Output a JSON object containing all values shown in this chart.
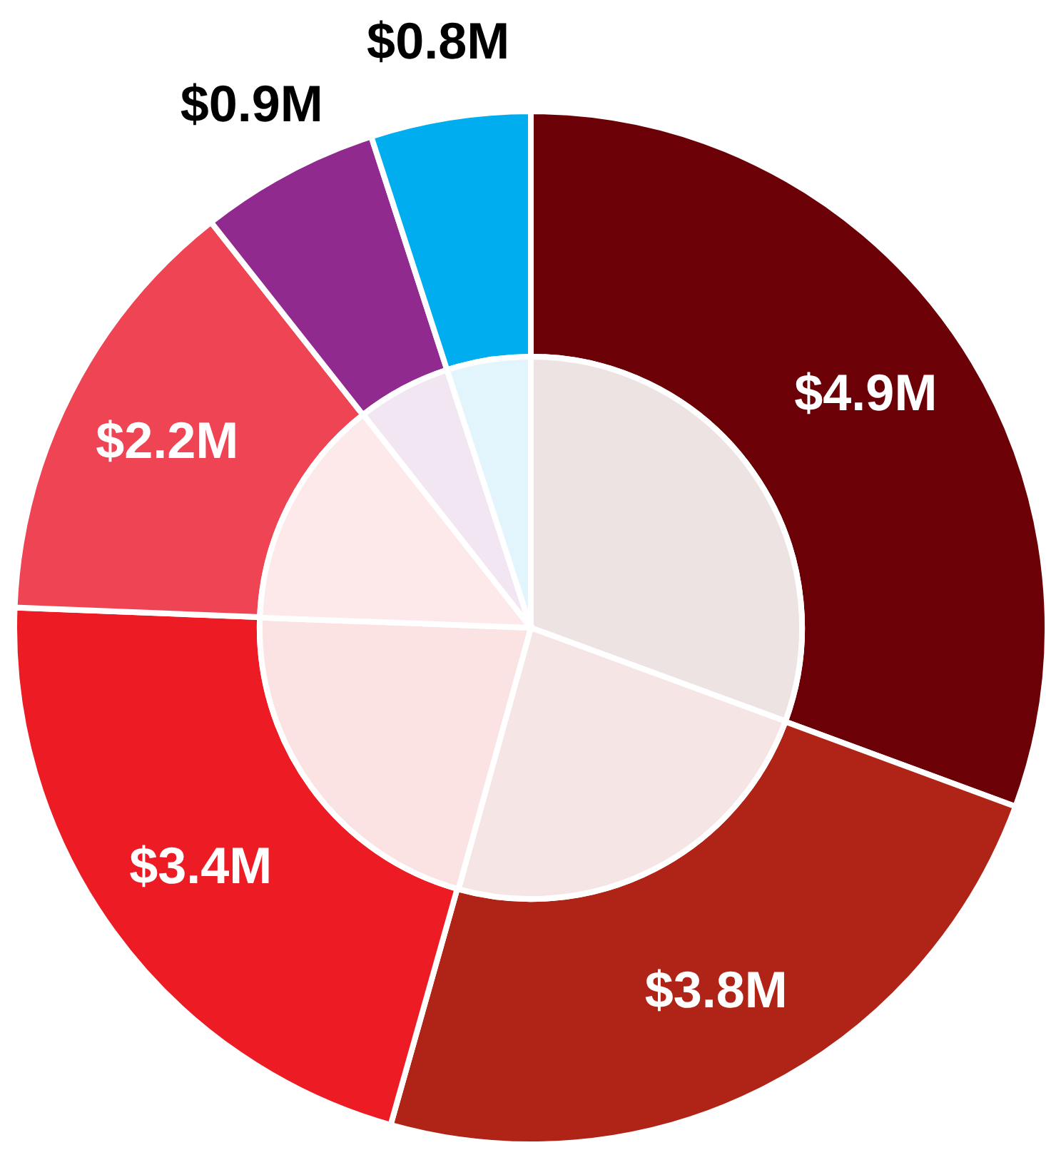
{
  "chart_data": {
    "type": "pie",
    "categories": [
      null,
      null,
      null,
      null,
      null,
      null
    ],
    "series": [
      {
        "colors": [
          "#6b0007",
          "#b02418",
          "#ed1c24",
          "#ef4454",
          "#912a8e",
          "#00aeef"
        ],
        "values": [
          4.9,
          3.8,
          3.4,
          2.2,
          0.9,
          0.8
        ],
        "value_labels": [
          "$4.9M",
          "$3.8M",
          "$3.4M",
          "$2.2M",
          "$0.9M",
          "$0.8M"
        ]
      },
      {
        "colors": [
          "#ede3e3",
          "#f5e5e4",
          "#fbe3e4",
          "#fde8ea",
          "#f2e6f2",
          "#e2f4fc"
        ],
        "values": [
          30.6,
          23.7,
          21.3,
          13.8,
          5.6,
          5.0
        ]
      }
    ]
  }
}
